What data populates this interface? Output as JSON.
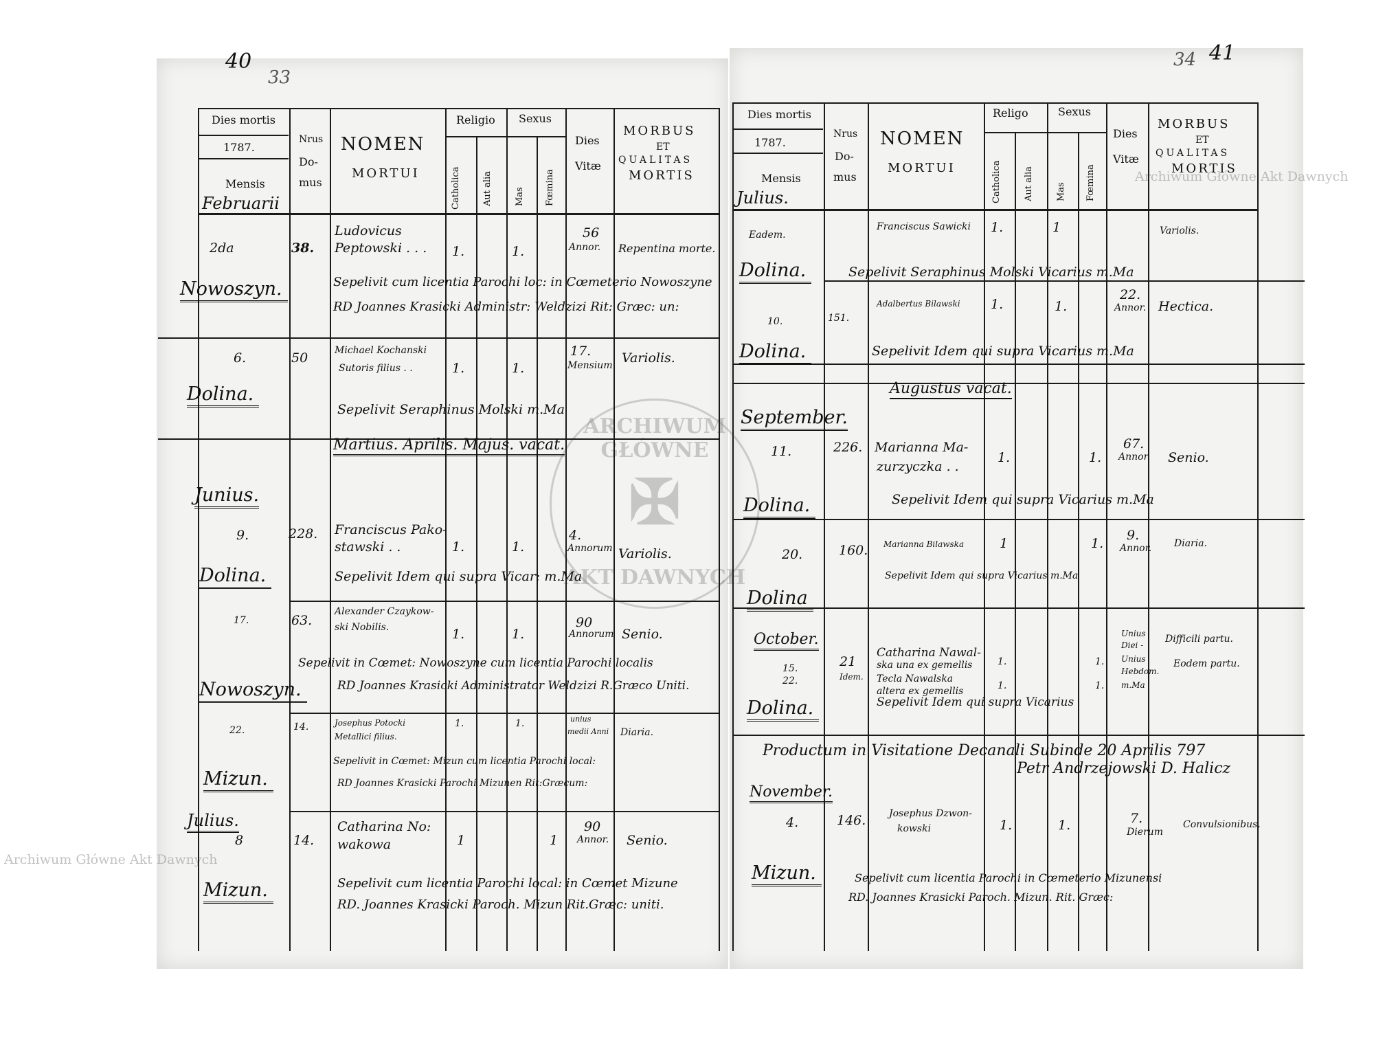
{
  "watermark": "Archiwum Główne Akt Dawnych",
  "stamp": {
    "top": "ARCHIWUM GŁÓWNE",
    "bottom": "AKT DAWNYCH",
    "icon": "eagle-icon"
  },
  "left_page": {
    "page_number": "40",
    "folio_number": "33",
    "header": {
      "dies_mortis": "Dies mortis",
      "year": "1787.",
      "mensis": "Mensis",
      "month": "Februarii",
      "nrus": "Nrus",
      "domus1": "Do-",
      "domus2": "mus",
      "nomen": "NOMEN",
      "mortui": "MORTUI",
      "religio": "Religio",
      "catholica": "Catholica",
      "aut_alia": "Aut alia",
      "sexus": "Sexus",
      "mas": "Mas",
      "foemina": "Fœmina",
      "dies": "Dies",
      "vitae": "Vitæ",
      "morbus": "MORBUS",
      "et": "ET",
      "qualitas": "QUALITAS",
      "mortis": "MORTIS"
    },
    "entries": [
      {
        "day": "2da",
        "domus": "38.",
        "name1": "Ludovicus",
        "name2": "Peptowski . . .",
        "catholica": "1.",
        "mas": "1.",
        "vitae1": "56",
        "vitae2": "Annor.",
        "morbus": "Repentina morte.",
        "place": "Nowoszyn.",
        "burial1": "Sepelivit cum licentia Parochi loc: in Cœmeterio Nowoszyne",
        "burial2": "RD Joannes Krasicki Administr: Weldzizi Rit: Græc: un:"
      },
      {
        "day": "6.",
        "domus": "50",
        "name1": "Michael Kochanski",
        "name2": "Sutoris filius . .",
        "catholica": "1.",
        "mas": "1.",
        "vitae1": "17.",
        "vitae2": "Mensium",
        "morbus": "Variolis.",
        "place": "Dolina.",
        "burial1": "Sepelivit Seraphinus Molski m.Ma"
      },
      {
        "day": "9.",
        "domus": "228.",
        "name1": "Franciscus Pako-",
        "name2": "stawski . .",
        "catholica": "1.",
        "mas": "1.",
        "vitae1": "4.",
        "vitae2": "Annorum",
        "morbus": "Variolis.",
        "place": "Dolina.",
        "burial1": "Sepelivit Idem qui supra Vicar: m.Ma"
      },
      {
        "day": "17.",
        "domus": "63.",
        "name1": "Alexander Czaykow-",
        "name2": "ski Nobilis.",
        "catholica": "1.",
        "mas": "1.",
        "vitae1": "90",
        "vitae2": "Annorum",
        "morbus": "Senio.",
        "place": "Nowoszyn.",
        "burial1": "Sepelivit in Cœmet: Nowoszyne cum licentia Parochi localis",
        "burial2": "RD Joannes Krasicki Administrator Weldzizi R.Græco Uniti."
      },
      {
        "day": "22.",
        "domus": "14.",
        "name1": "Josephus Potocki",
        "name2": "Metallici filius.",
        "catholica": "1.",
        "mas": "1.",
        "vitae1": "unius",
        "vitae2": "medii Anni",
        "morbus": "Diaria.",
        "place": "Mizun.",
        "burial1": "Sepelivit in Cœmet: Mizun cum licentia Parochi local:",
        "burial2": "RD Joannes Krasicki Parochi Mizunen Rit:Græcum:"
      },
      {
        "day": "8",
        "domus": "14.",
        "name1": "Catharina No:",
        "name2": "wakowa",
        "catholica": "1",
        "foemina": "1",
        "vitae1": "90",
        "vitae2": "Annor.",
        "morbus": "Senio.",
        "place": "Mizun.",
        "burial1": "Sepelivit cum licentia Parochi local: in Cœmet Mizune",
        "burial2": "RD. Joannes Krasicki Paroch. Mizun Rit.Græc: uniti."
      }
    ],
    "vacat_note": "Martius. Aprilis. Majus. vacat.",
    "month_junius": "Junius.",
    "month_julius": "Julius."
  },
  "right_page": {
    "page_number": "41",
    "folio_number": "34",
    "header": {
      "dies_mortis": "Dies mortis",
      "year": "1787.",
      "mensis": "Mensis",
      "month": "Julius.",
      "nrus": "Nrus",
      "domus1": "Do-",
      "domus2": "mus",
      "nomen": "NOMEN",
      "mortui": "MORTUI",
      "religio": "Religo",
      "catholica": "Catholica",
      "aut_alia": "Aut alia",
      "sexus": "Sexus",
      "mas": "Mas",
      "foemina": "Fœmina",
      "dies": "Dies",
      "vitae": "Vitæ",
      "morbus": "MORBUS",
      "et": "ET",
      "qualitas": "QUALITAS",
      "mortis": "MORTIS"
    },
    "entries": [
      {
        "day": "Eadem.",
        "name1": "Franciscus Sawicki",
        "catholica": "1.",
        "mas": "1",
        "morbus": "Variolis.",
        "place": "Dolina.",
        "burial1": "Sepelivit Seraphinus Molski Vicarius m.Ma"
      },
      {
        "day": "10.",
        "domus": "151.",
        "name1": "Adalbertus Bilawski",
        "catholica": "1.",
        "mas": "1.",
        "vitae1": "22.",
        "vitae2": "Annor.",
        "morbus": "Hectica.",
        "place": "Dolina.",
        "burial1": "Sepelivit Idem qui supra Vicarius m.Ma"
      },
      {
        "day": "11.",
        "domus": "226.",
        "name1": "Marianna Ma-",
        "name2": "zurzyczka . .",
        "catholica": "1.",
        "foemina": "1.",
        "vitae1": "67.",
        "vitae2": "Annor.",
        "morbus": "Senio.",
        "place": "Dolina.",
        "burial1": "Sepelivit Idem qui supra Vicarius m.Ma"
      },
      {
        "day": "20.",
        "domus": "160.",
        "name1": "Marianna Bilawska",
        "catholica": "1",
        "foemina": "1.",
        "vitae1": "9.",
        "vitae2": "Annor.",
        "morbus": "Diaria.",
        "place": "Dolina",
        "burial1": "Sepelivit Idem qui supra Vicarius m.Ma"
      },
      {
        "day": "15.",
        "day2": "22.",
        "domus": "21",
        "domus2": "Idem.",
        "name1": "Catharina Nawal-",
        "name2": "ska una ex gemellis",
        "name3": "Tecla Nawalska",
        "name4": "altera ex gemellis",
        "catholica": "1.",
        "catholica2": "1.",
        "foemina": "1.",
        "foemina2": "1.",
        "vitae1": "Unius",
        "vitae2": "Diei -",
        "vitae3": "Unius",
        "vitae4": "Hebdom.",
        "vitae5": "m.Ma",
        "morbus": "Difficili partu.",
        "morbus2": "Eodem partu.",
        "place": "Dolina.",
        "burial1": "Sepelivit Idem qui supra Vicarius"
      },
      {
        "day": "4.",
        "domus": "146.",
        "name1": "Josephus Dzwon-",
        "name2": "kowski",
        "catholica": "1.",
        "mas": "1.",
        "vitae1": "7.",
        "vitae2": "Dierum",
        "morbus": "Convulsionibus.",
        "place": "Mizun.",
        "burial1": "Sepelivit cum licentia Parochi in Cœmeterio Mizunensi",
        "burial2": "RD. Joannes Krasicki Paroch. Mizun. Rit. Græc:"
      }
    ],
    "vacat_note": "Augustus vacat.",
    "month_september": "September.",
    "month_october": "October.",
    "month_november": "November.",
    "visitation_note1": "Productum in Visitatione Decanali Subinde 20 Aprilis 797",
    "visitation_note2": "Petr Andrzejowski D. Halicz"
  }
}
